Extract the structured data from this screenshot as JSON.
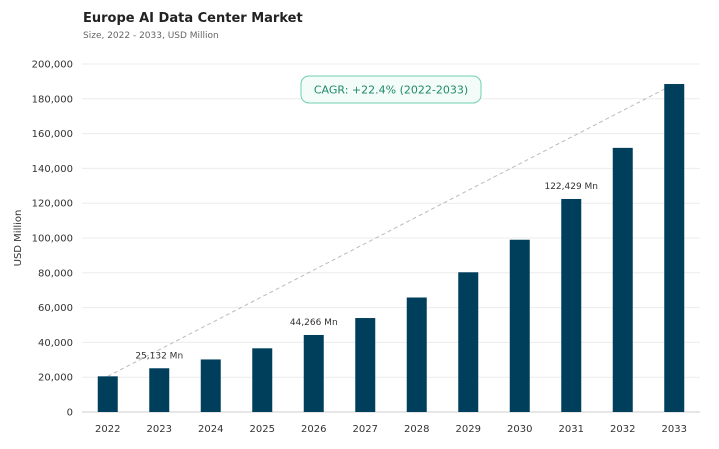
{
  "title": "Europe AI Data Center Market",
  "subtitle": "Size, 2022 - 2033, USD Million",
  "colors": {
    "bar": "#003f5c",
    "cagr_border": "#6fcfac",
    "cagr_fill": "#f3fcf8",
    "cagr_text": "#1f8a6a",
    "trend": "#bbbbbb"
  },
  "chart_data": {
    "type": "bar",
    "categories": [
      "2022",
      "2023",
      "2024",
      "2025",
      "2026",
      "2027",
      "2028",
      "2029",
      "2030",
      "2031",
      "2032",
      "2033"
    ],
    "values": [
      20500,
      25132,
      30200,
      36600,
      44266,
      54000,
      65800,
      80300,
      99000,
      122429,
      151800,
      188500
    ],
    "ylabel": "USD Million",
    "ylim": [
      0,
      200000
    ],
    "yticks": [
      0,
      20000,
      40000,
      60000,
      80000,
      100000,
      120000,
      140000,
      160000,
      180000,
      200000
    ],
    "ytick_labels": [
      "0",
      "20,000",
      "40,000",
      "60,000",
      "80,000",
      "100,000",
      "120,000",
      "140,000",
      "160,000",
      "180,000",
      "200,000"
    ],
    "grid": true,
    "data_labels": [
      {
        "category": "2023",
        "text": "25,132 Mn"
      },
      {
        "category": "2026",
        "text": "44,266 Mn"
      },
      {
        "category": "2031",
        "text": "122,429 Mn"
      }
    ],
    "annotation": "CAGR: +22.4% (2022-2033)",
    "trend_line": {
      "from": "2022",
      "to": "2033",
      "style": "dashed"
    }
  }
}
